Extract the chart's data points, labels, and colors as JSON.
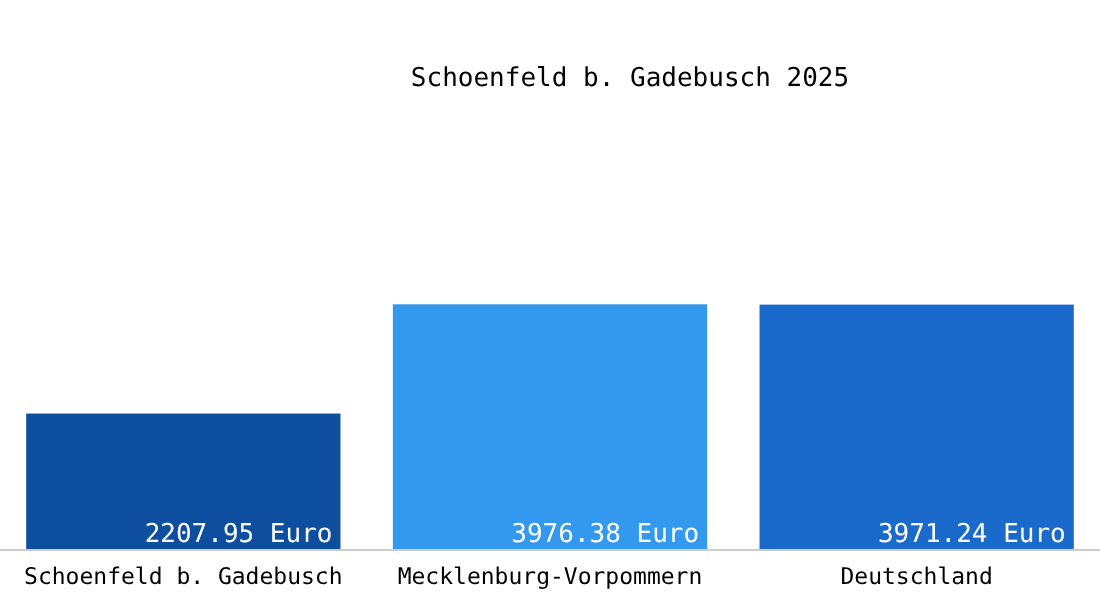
{
  "chart_data": {
    "type": "bar",
    "title": "Schoenfeld b. Gadebusch 2025",
    "categories": [
      "Schoenfeld b. Gadebusch",
      "Mecklenburg-Vorpommern",
      "Deutschland"
    ],
    "values": [
      2207.95,
      3976.38,
      3971.24
    ],
    "value_labels": [
      "2207.95 Euro",
      "3976.38 Euro",
      "3971.24 Euro"
    ],
    "colors": [
      "#0d4f9e",
      "#3399ee",
      "#1a6acc"
    ]
  }
}
